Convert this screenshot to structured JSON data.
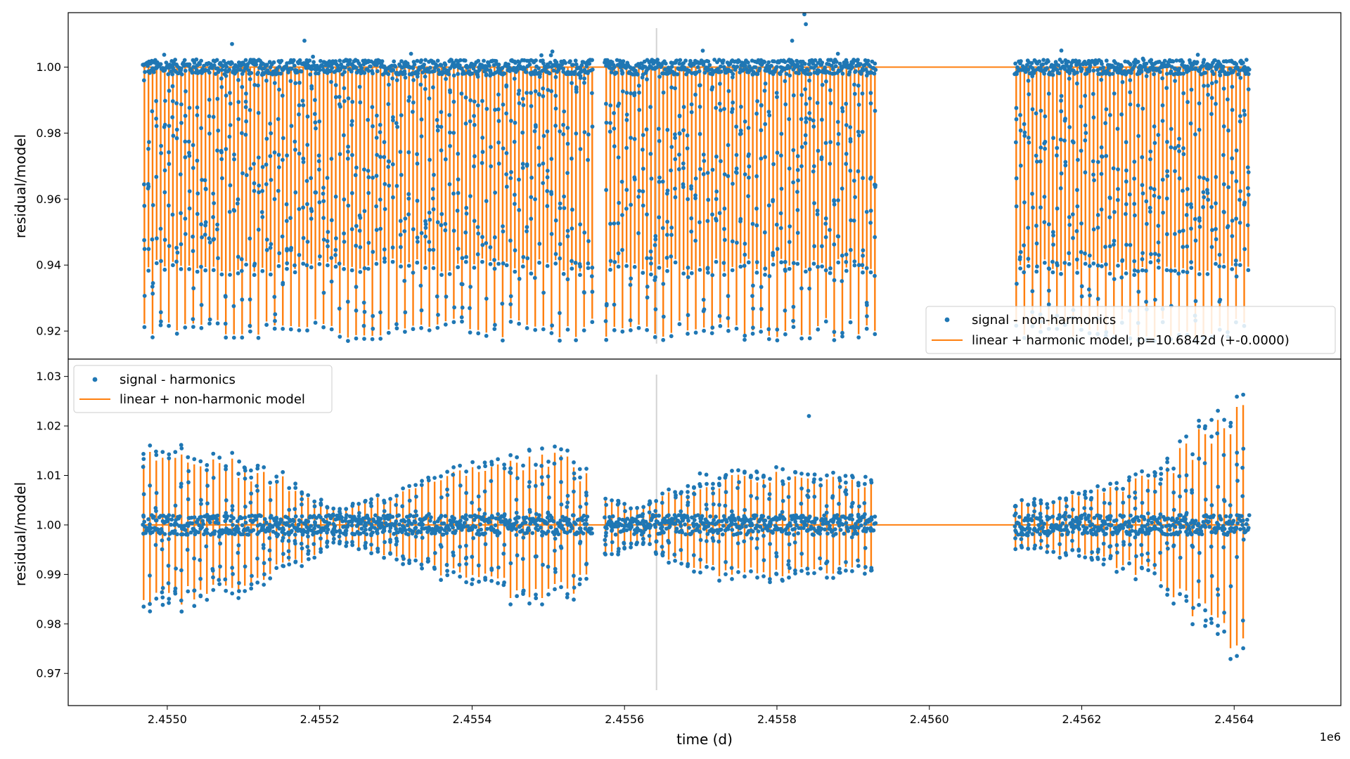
{
  "colors": {
    "signal": "#1f77b4",
    "model": "#ff7f0e",
    "vline": "#d3d3d3"
  },
  "xaxis": {
    "label": "time (d)",
    "offset_label": "1e6",
    "tick_labels": [
      "2.4550",
      "2.4552",
      "2.4554",
      "2.4556",
      "2.4558",
      "2.4560",
      "2.4562",
      "2.4564"
    ],
    "lim": [
      2454870,
      2456540
    ]
  },
  "chart_data": [
    {
      "type": "scatter",
      "title": "",
      "xlabel": "",
      "ylabel": "residual/model",
      "ylim": [
        0.9115,
        1.0165
      ],
      "yticks": [
        0.92,
        0.94,
        0.96,
        0.98,
        1.0
      ],
      "ytick_labels": [
        "0.92",
        "0.94",
        "0.96",
        "0.98",
        "1.00"
      ],
      "vline_x": 2455642,
      "segments": [
        [
          2454968,
          2455558
        ],
        [
          2455574,
          2455930
        ],
        [
          2456112,
          2456420
        ]
      ],
      "legend": {
        "placement": "lower-right",
        "entries": [
          {
            "kind": "points",
            "label": "signal - non-harmonics"
          },
          {
            "kind": "line",
            "label": "linear + harmonic model, p=10.6842d (+-0.0000)"
          }
        ]
      },
      "series": [
        {
          "name": "signal - non-harmonics",
          "kind": "points"
        },
        {
          "name": "linear + harmonic model, p=10.6842d (+-0.0000)",
          "kind": "line",
          "period_d": 10.6842,
          "baseline": 1.0,
          "eclipse_min": [
            0.918,
            0.924
          ],
          "eclipse_min_secondary": [
            0.938,
            0.942
          ]
        }
      ]
    },
    {
      "type": "scatter",
      "title": "",
      "xlabel": "time (d)",
      "ylabel": "residual/model",
      "ylim": [
        0.9635,
        1.0335
      ],
      "yticks": [
        0.97,
        0.98,
        0.99,
        1.0,
        1.01,
        1.02,
        1.03
      ],
      "ytick_labels": [
        "0.97",
        "0.98",
        "0.99",
        "1.00",
        "1.01",
        "1.02",
        "1.03"
      ],
      "vline_x": 2455642,
      "segments": [
        [
          2454968,
          2455558
        ],
        [
          2455574,
          2455930
        ],
        [
          2456112,
          2456420
        ]
      ],
      "amplitude_envelope": {
        "x": [
          2454968,
          2455050,
          2455150,
          2455220,
          2455300,
          2455380,
          2455460,
          2455530,
          2455570,
          2455620,
          2455700,
          2455800,
          2455870,
          2455930,
          2456110,
          2456200,
          2456300,
          2456350,
          2456420
        ],
        "amp": [
          0.018,
          0.017,
          0.011,
          0.004,
          0.007,
          0.012,
          0.016,
          0.016,
          0.007,
          0.004,
          0.011,
          0.012,
          0.011,
          0.01,
          0.005,
          0.007,
          0.012,
          0.021,
          0.029
        ]
      },
      "legend": {
        "placement": "top-left",
        "entries": [
          {
            "kind": "points",
            "label": "signal - harmonics"
          },
          {
            "kind": "line",
            "label": "linear + non-harmonic model"
          }
        ]
      },
      "series": [
        {
          "name": "signal - harmonics",
          "kind": "points"
        },
        {
          "name": "linear + non-harmonic model",
          "kind": "line",
          "baseline": 1.0
        }
      ]
    }
  ]
}
